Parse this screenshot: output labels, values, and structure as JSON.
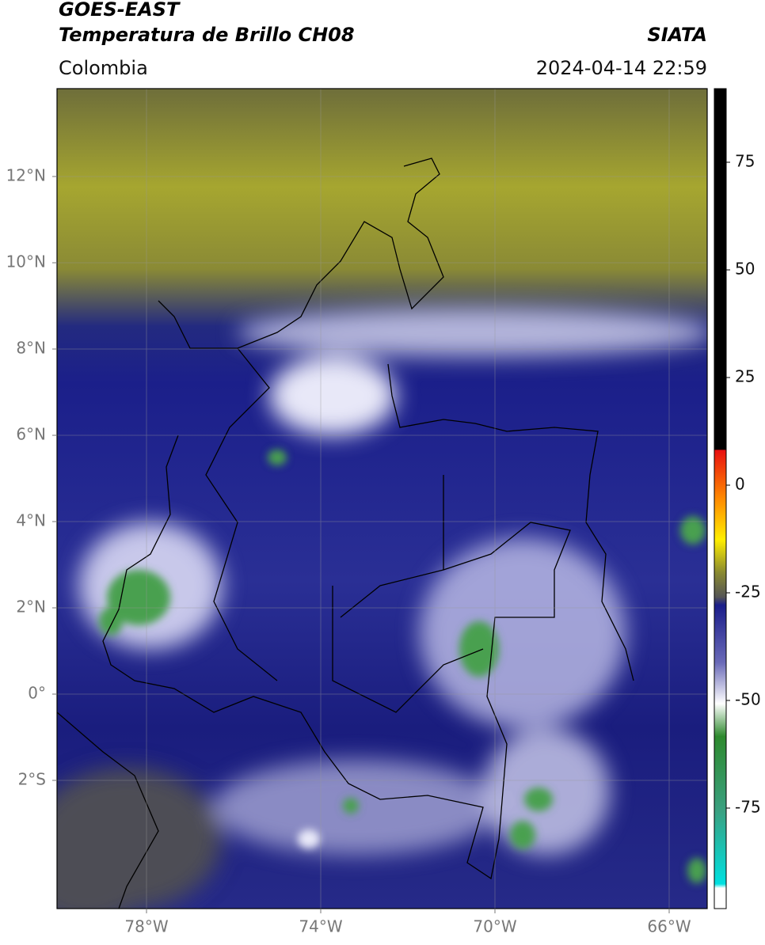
{
  "header": {
    "title_line1": "GOES-EAST",
    "title_line2": "Temperatura de Brillo CH08",
    "source": "SIATA",
    "region": "Colombia",
    "datetime": "2024-04-14 22:59"
  },
  "map": {
    "lat_labels": [
      "12°N",
      "10°N",
      "8°N",
      "6°N",
      "4°N",
      "2°N",
      "0°",
      "2°S"
    ],
    "lon_labels": [
      "78°W",
      "74°W",
      "70°W",
      "66°W"
    ]
  },
  "colorbar": {
    "ticks": [
      75,
      50,
      25,
      0,
      -25,
      -50,
      -75
    ]
  }
}
